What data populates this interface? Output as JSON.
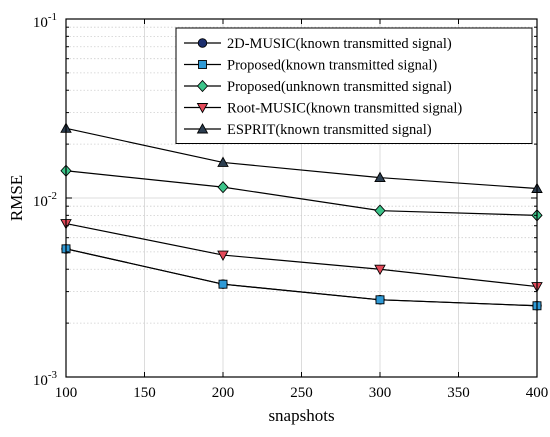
{
  "chart_data": {
    "type": "line",
    "x_scale": "linear",
    "y_scale": "log",
    "xlim": [
      100,
      400
    ],
    "ylim": [
      0.001,
      0.1
    ],
    "xlabel": "snapshots",
    "ylabel": "RMSE",
    "x_ticks": [
      100,
      150,
      200,
      250,
      300,
      350,
      400
    ],
    "x_tick_labels": [
      "100",
      "150",
      "200",
      "250",
      "300",
      "350",
      "400"
    ],
    "y_ticks": [
      {
        "value": 0.001,
        "base": "10",
        "exp": "-3"
      },
      {
        "value": 0.01,
        "base": "10",
        "exp": "-2"
      },
      {
        "value": 0.1,
        "base": "10",
        "exp": "-1"
      }
    ],
    "grid": true,
    "legend_position": "top-right",
    "series": [
      {
        "name": "2D-MUSIC(known transmitted signal)",
        "marker": "circle",
        "color": "#1c2e6e",
        "x": [
          100,
          200,
          300,
          400
        ],
        "y": [
          0.0052,
          0.0033,
          0.0027,
          0.0025
        ]
      },
      {
        "name": "Proposed(known transmitted signal)",
        "marker": "square",
        "color": "#2f9ad6",
        "x": [
          100,
          200,
          300,
          400
        ],
        "y": [
          0.0052,
          0.0033,
          0.0027,
          0.0025
        ]
      },
      {
        "name": "Proposed(unknown transmitted signal)",
        "marker": "diamond",
        "color": "#3cc48a",
        "x": [
          100,
          200,
          300,
          400
        ],
        "y": [
          0.0142,
          0.0115,
          0.0085,
          0.008
        ]
      },
      {
        "name": "Root-MUSIC(known transmitted signal)",
        "marker": "triangle-down",
        "color": "#e34a5a",
        "x": [
          100,
          200,
          300,
          400
        ],
        "y": [
          0.0072,
          0.0048,
          0.004,
          0.0032
        ]
      },
      {
        "name": "ESPRIT(known transmitted signal)",
        "marker": "triangle-up",
        "color": "#2c3e50",
        "x": [
          100,
          200,
          300,
          400
        ],
        "y": [
          0.0245,
          0.0158,
          0.013,
          0.0113
        ]
      }
    ]
  }
}
